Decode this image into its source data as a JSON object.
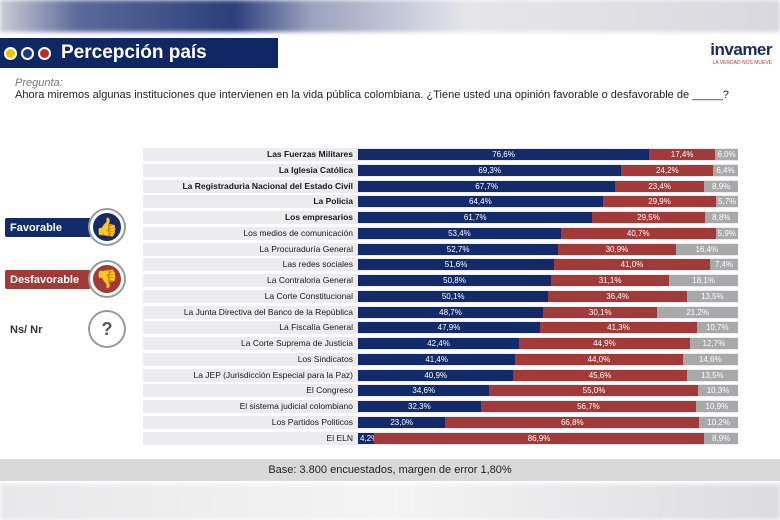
{
  "header": {
    "title": "Percepción país",
    "dots": [
      "#f2c400",
      "#1c3a8c",
      "#c0282d"
    ],
    "logo": "invamer",
    "logo_tagline": "LA VERDAD NOS MUEVE"
  },
  "question": {
    "label": "Pregunta:",
    "text": "Ahora miremos algunas instituciones que intervienen en la vida pública colombiana. ¿Tiene usted una opinión favorable o desfavorable de _____?"
  },
  "legend": {
    "favorable": "Favorable",
    "desfavorable": "Desfavorable",
    "nsnr": "Ns/ Nr"
  },
  "colors": {
    "favorable": "#142b6b",
    "desfavorable": "#a33a3a",
    "nsnr": "#a9a9a9"
  },
  "footer": "Base: 3.800 encuestados, margen de error 1,80%",
  "chart_data": {
    "type": "bar",
    "stacked": true,
    "orientation": "horizontal",
    "categories": [
      "Las Fuerzas Militares",
      "La Iglesia Católica",
      "La Registraduria Nacional del Estado Civil",
      "La Policia",
      "Los empresarios",
      "Los medios de comunicación",
      "La Procuraduría General",
      "Las redes sociales",
      "La Contraloria General",
      "La Corte Constitucional",
      "La Junta Directiva del Banco de la República",
      "La Fiscalía General",
      "La Corte Suprema de Justicia",
      "Los Sindicatos",
      "La JEP (Jurisdicción Especial para la Paz)",
      "El Congreso",
      "El sistema judicial colombiano",
      "Los Partidos Politicos",
      "El ELN"
    ],
    "bold_categories": [
      0,
      1,
      2,
      3,
      4
    ],
    "series": [
      {
        "name": "Favorable",
        "values": [
          76.6,
          69.3,
          67.7,
          64.4,
          61.7,
          53.4,
          52.7,
          51.6,
          50.8,
          50.1,
          48.7,
          47.9,
          42.4,
          41.4,
          40.9,
          34.6,
          32.3,
          23.0,
          4.2
        ]
      },
      {
        "name": "Desfavorable",
        "values": [
          17.4,
          24.2,
          23.4,
          29.9,
          29.5,
          40.7,
          30.9,
          41.0,
          31.1,
          36.4,
          30.1,
          41.3,
          44.9,
          44.0,
          45.6,
          55.0,
          56.7,
          66.8,
          86.9
        ]
      },
      {
        "name": "Ns/ Nr",
        "values": [
          6.0,
          6.4,
          8.9,
          5.7,
          8.8,
          5.9,
          16.4,
          7.4,
          18.1,
          13.5,
          21.2,
          10.7,
          12.7,
          14.6,
          13.5,
          10.3,
          10.9,
          10.2,
          8.9
        ]
      }
    ],
    "xlim": [
      0,
      100
    ]
  }
}
